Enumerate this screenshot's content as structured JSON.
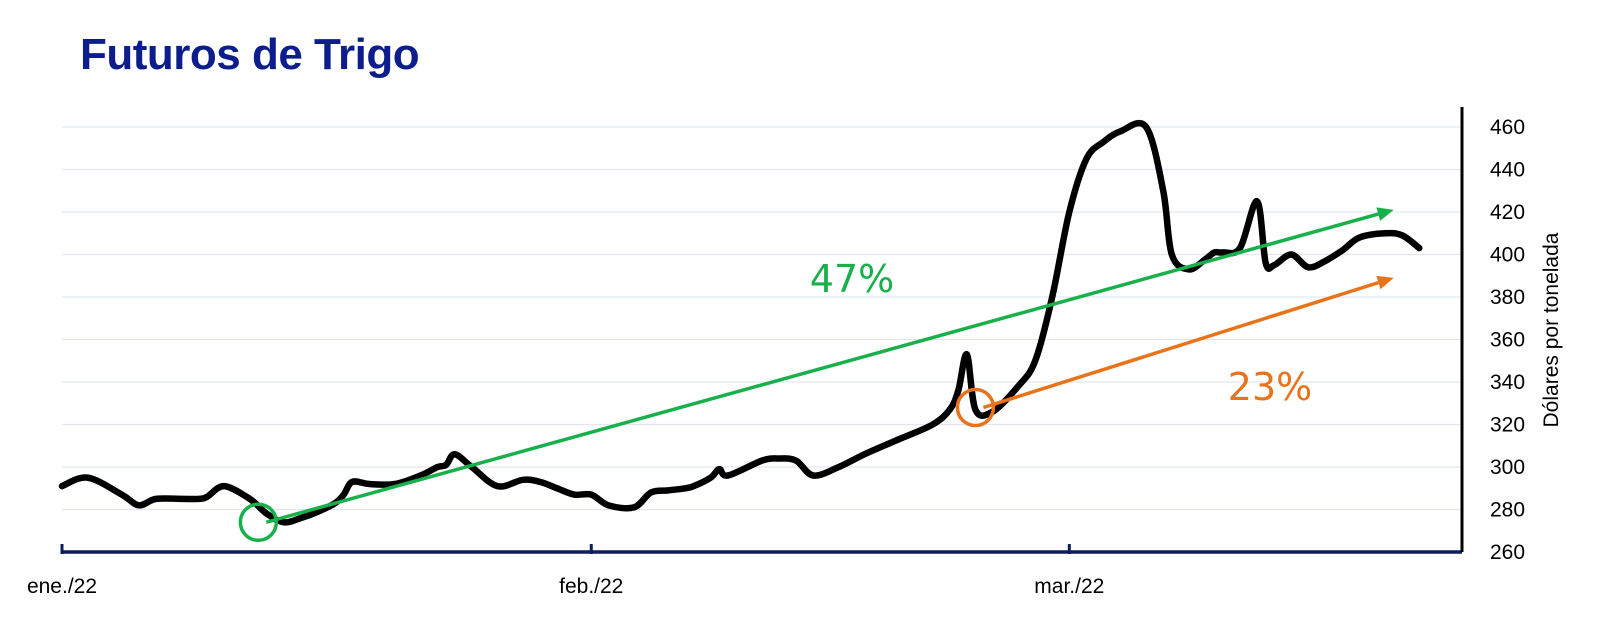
{
  "chart_data": {
    "type": "line",
    "title": "Futuros de  Trigo",
    "ylabel": "Dólares por tonelada",
    "xlabel": "",
    "ylim": [
      260,
      470
    ],
    "yticks": [
      260,
      280,
      300,
      320,
      340,
      360,
      380,
      400,
      420,
      440,
      460
    ],
    "y_axis_position": "right",
    "grid": true,
    "x_ticks": [
      {
        "label": "ene./22",
        "day": 1
      },
      {
        "label": "feb./22",
        "day": 32
      },
      {
        "label": "mar./22",
        "day": 60
      }
    ],
    "x_range_days": [
      1,
      82
    ],
    "series": [
      {
        "x": [
          1,
          2.5,
          4.5,
          5.5,
          6.5,
          8,
          9,
          9.5,
          10.5,
          12,
          13,
          14,
          15,
          16,
          17,
          17.5,
          18,
          19,
          20.5,
          22,
          23,
          23.5,
          24,
          25,
          26.5,
          28,
          29,
          30,
          31,
          32,
          33,
          34.5,
          35.5,
          36.5,
          37.5,
          38,
          39,
          39.5,
          40,
          42,
          43,
          44,
          45,
          46.5,
          48,
          50,
          52,
          53,
          53.5,
          54,
          54.5,
          55.5,
          57,
          58,
          59,
          60,
          61,
          62,
          63,
          64.5,
          65.5,
          66,
          67,
          68,
          68.5,
          69,
          70,
          71,
          71.5,
          72,
          73,
          74,
          75,
          76,
          77,
          78.5,
          79.5,
          80.5
        ],
        "values": [
          291,
          295,
          287,
          282,
          285,
          285,
          285,
          286,
          291,
          285,
          278,
          274,
          276,
          279,
          283,
          287,
          293,
          292,
          292,
          296,
          300,
          301,
          306,
          300,
          291,
          294,
          293,
          290,
          287,
          287,
          282,
          281,
          288,
          289,
          290,
          291,
          295,
          299,
          296,
          303,
          304,
          303,
          296,
          300,
          306,
          313,
          320,
          327,
          336,
          353,
          327,
          326,
          338,
          350,
          380,
          420,
          445,
          453,
          458,
          460,
          430,
          400,
          393,
          398,
          401,
          401,
          403,
          425,
          396,
          395,
          400,
          394,
          397,
          402,
          408,
          410,
          409,
          403
        ]
      }
    ],
    "annotations": [
      {
        "label": "47%",
        "color": "#19b04b",
        "from_day": 12.5,
        "from_value": 274,
        "to_day": 79,
        "to_value": 421
      },
      {
        "label": "23%",
        "color": "#e8731a",
        "from_day": 54.5,
        "from_value": 328,
        "to_day": 79,
        "to_value": 389
      }
    ],
    "colors": {
      "line": "#000000",
      "grid": "#e2e6f2",
      "axis": "#0d1d5e",
      "title": "#0d1d8c"
    }
  }
}
